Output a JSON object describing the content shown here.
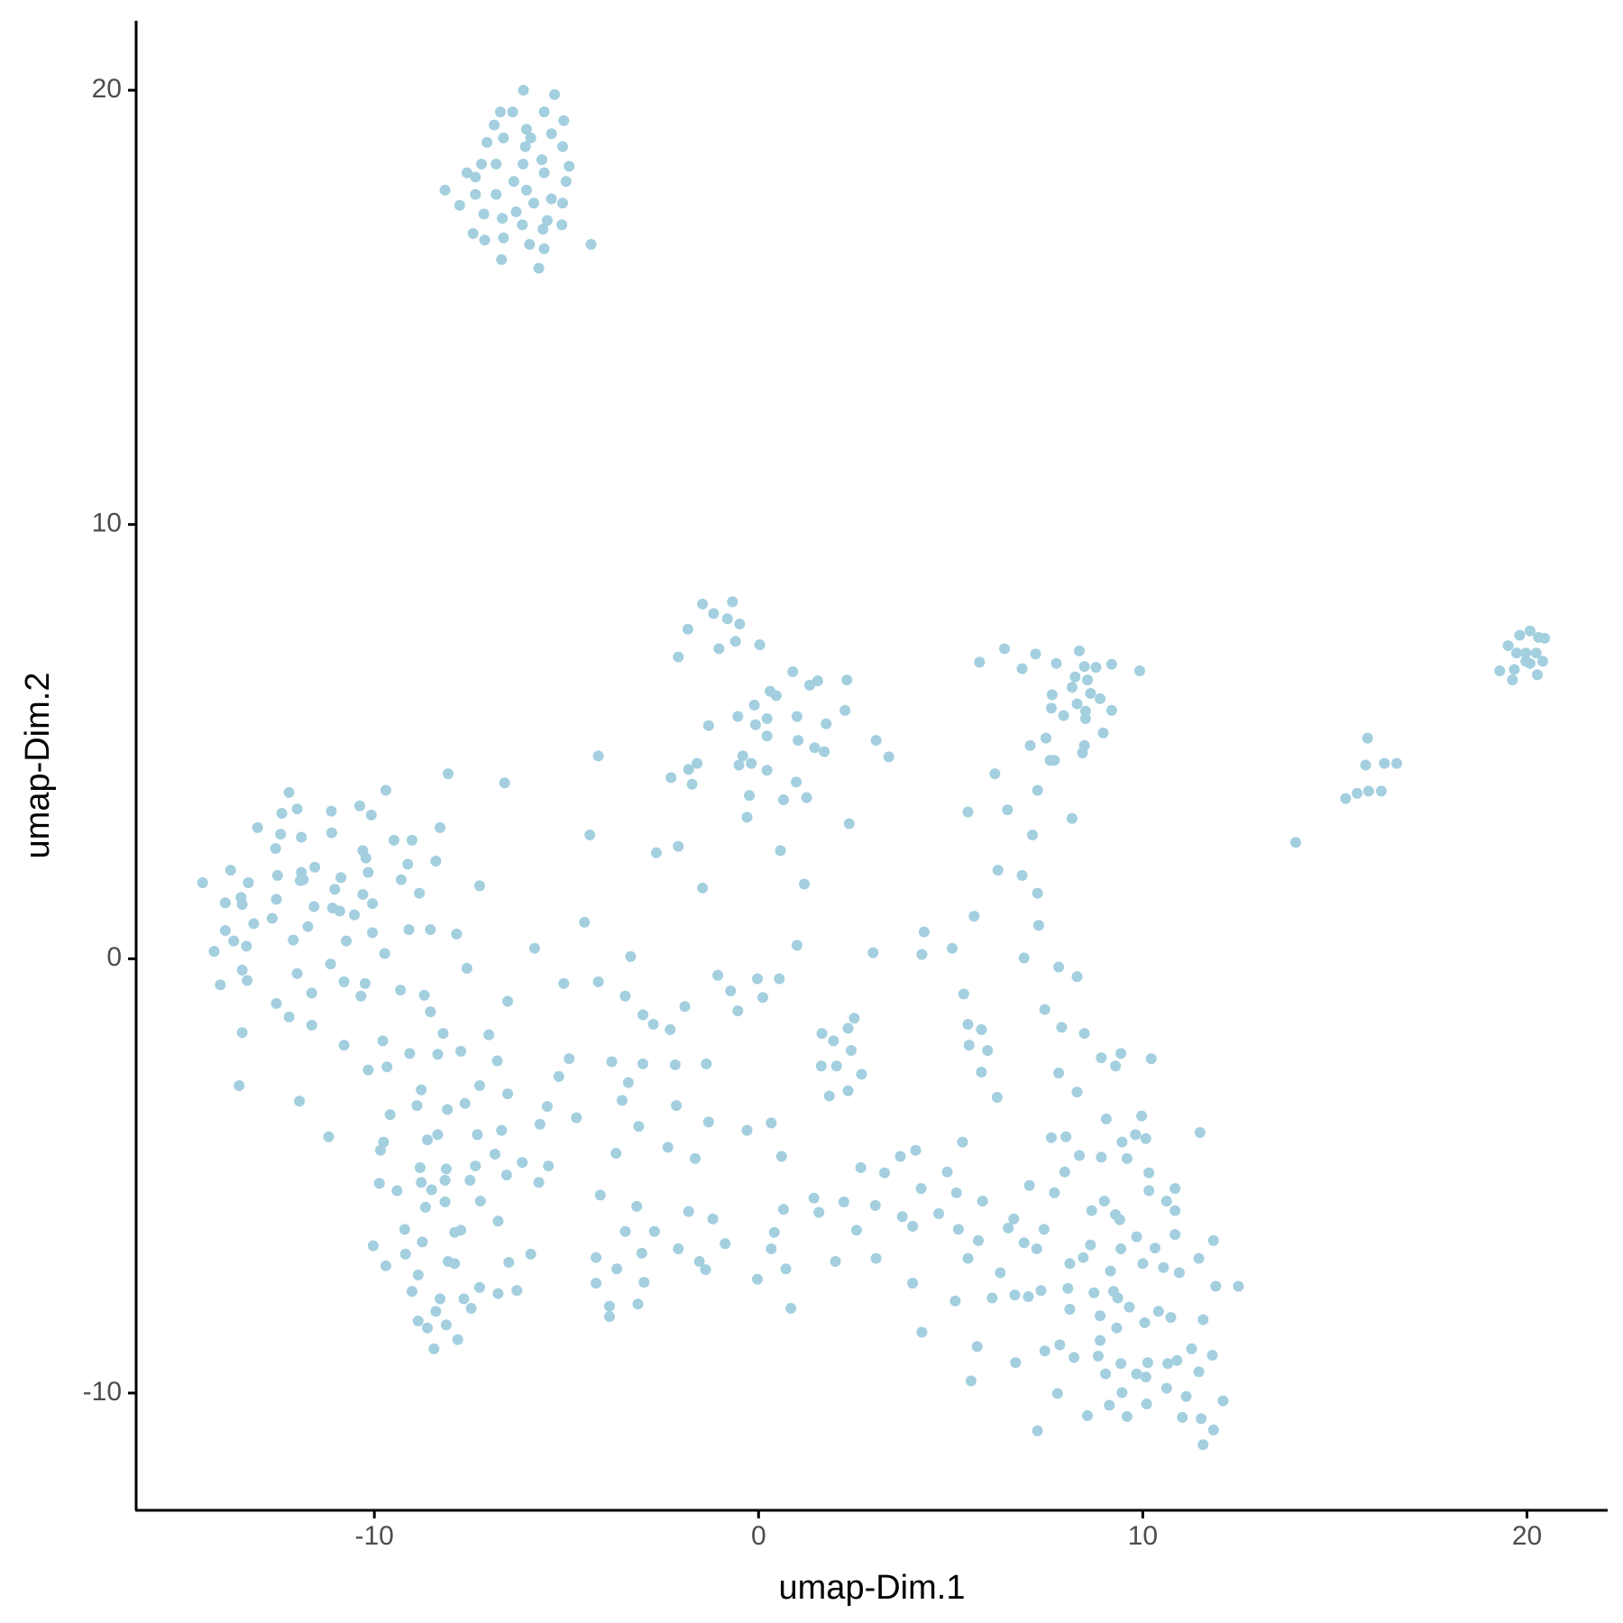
{
  "chart_data": {
    "type": "scatter",
    "x_label": "umap-Dim.1",
    "y_label": "umap-Dim.2",
    "color": "#a3cfdf",
    "xlim": [
      -16.2,
      22.1
    ],
    "ylim": [
      -12.7,
      21.6
    ],
    "xticks": [
      -10,
      0,
      10,
      20
    ],
    "yticks": [
      -10,
      0,
      10,
      20
    ],
    "grid": false,
    "x": [
      -6.12,
      -5.31,
      -6.72,
      -6.4,
      -5.58,
      -6.88,
      -6.04,
      -5.07,
      -5.93,
      -5.39,
      -7.07,
      -6.64,
      -6.07,
      -5.1,
      -7.21,
      -6.83,
      -6.13,
      -5.64,
      -4.93,
      -7.59,
      -7.37,
      -5.58,
      -5.01,
      -8.16,
      -7.37,
      -6.83,
      -6.37,
      -6.04,
      -7.78,
      -5.85,
      -5.39,
      -5.1,
      -7.15,
      -6.67,
      -6.31,
      -6.15,
      -5.5,
      -5.12,
      -5.61,
      -7.43,
      -7.13,
      -6.64,
      -5.96,
      -5.58,
      -4.36,
      -6.69,
      -5.72,
      19.51,
      19.81,
      20.08,
      20.3,
      20.46,
      19.73,
      19.97,
      20.24,
      20.41,
      20.08,
      19.67,
      19.29,
      19.62,
      20.27,
      19.97,
      15.85,
      15.8,
      16.29,
      16.61,
      15.28,
      15.58,
      15.88,
      16.21,
      13.98,
      6.4,
      5.75,
      7.21,
      6.86,
      8.35,
      7.75,
      8.48,
      8.78,
      9.19,
      9.92,
      8.24,
      8.56,
      8.16,
      7.64,
      8.64,
      8.89,
      7.62,
      7.94,
      8.29,
      8.51,
      9.19,
      8.51,
      8.97,
      7.48,
      7.07,
      8.48,
      8.43,
      7.59,
      7.7,
      6.15,
      7.26,
      5.45,
      6.48,
      8.16,
      7.13,
      6.23,
      6.86,
      7.26,
      5.61,
      7.29,
      6.91,
      7.81,
      8.29,
      5.04,
      4.25,
      4.31,
      2.98,
      -1.46,
      -0.68,
      -1.17,
      -0.81,
      -0.49,
      -1.84,
      -1.03,
      -0.6,
      0.03,
      -2.09,
      0.89,
      1.54,
      1.33,
      2.3,
      0.3,
      0.46,
      -0.11,
      2.25,
      -0.54,
      0.22,
      1.0,
      -1.3,
      -0.08,
      1.76,
      0.22,
      1.03,
      3.06,
      1.46,
      1.71,
      3.39,
      -0.41,
      -1.6,
      -0.51,
      -0.19,
      -1.82,
      0.22,
      -2.28,
      -1.73,
      0.98,
      -4.17,
      -6.61,
      -0.24,
      0.65,
      1.25,
      2.36,
      -0.3,
      -4.39,
      -2.09,
      0.57,
      -2.66,
      1.19,
      -1.46,
      -4.53,
      1.0,
      -3.33,
      -5.83,
      -12.22,
      -9.7,
      -10.38,
      -12.01,
      -11.12,
      -12.41,
      -10.08,
      -13.04,
      -8.08,
      -8.29,
      -12.44,
      -11.9,
      -11.11,
      -9.49,
      -9.02,
      -12.57,
      -10.3,
      -10.22,
      -8.4,
      -9.13,
      -13.74,
      -11.55,
      -11.9,
      -10.16,
      -12.52,
      -10.87,
      -9.3,
      -13.28,
      -14.47,
      -11.93,
      -11.85,
      -7.26,
      -11.03,
      -8.83,
      -10.3,
      -13.47,
      -12.55,
      -13.88,
      -13.44,
      -10.05,
      -11.09,
      -11.57,
      -10.9,
      -10.52,
      -12.66,
      -13.14,
      -11.73,
      -13.88,
      -10.05,
      -9.1,
      -8.54,
      -7.86,
      -13.66,
      -12.11,
      -10.73,
      -13.33,
      -14.17,
      -9.73,
      -11.14,
      -13.44,
      -12.01,
      -7.59,
      -13.31,
      -14.01,
      -10.79,
      -10.24,
      -9.32,
      -11.63,
      -8.7,
      -10.35,
      -6.53,
      -12.55,
      -12.22,
      -8.54,
      -11.63,
      -13.44,
      -8.21,
      -7.02,
      -10.79,
      -9.78,
      -9.08,
      -8.35,
      -7.75,
      -10.16,
      -9.67,
      -6.8,
      -13.52,
      -11.95,
      -8.78,
      -8.89,
      -8.1,
      -7.64,
      -7.26,
      -6.53,
      -9.59,
      -11.19,
      -9.76,
      -9.84,
      -8.35,
      -8.62,
      -7.32,
      -6.69,
      -8.81,
      -8.13,
      -7.37,
      -8.16,
      -6.86,
      -6.56,
      -6.15,
      -5.47,
      -5.72,
      -9.87,
      -9.41,
      -8.78,
      -7.51,
      -8.51,
      -8.16,
      -7.24,
      -8.67,
      -6.78,
      -7.75,
      -7.91,
      -9.21,
      -10.03,
      -8.75,
      -9.19,
      -9.7,
      -8.08,
      -7.91,
      -5.93,
      -8.86,
      -9.02,
      -7.26,
      -6.78,
      -6.29,
      -6.5,
      -8.29,
      -7.67,
      -8.4,
      -7.48,
      -8.86,
      -8.62,
      -8.13,
      -7.83,
      -8.45,
      -5.07,
      -4.17,
      -3.47,
      -3.01,
      -1.92,
      -2.3,
      -2.74,
      -4.93,
      -3.82,
      -3.01,
      -2.17,
      -1.36,
      -5.2,
      -3.39,
      -3.55,
      -5.5,
      -2.14,
      -4.74,
      -5.69,
      -3.12,
      -1.3,
      -3.71,
      -2.36,
      -1.65,
      -1.06,
      -0.73,
      -0.03,
      0.54,
      -0.54,
      0.11,
      -0.3,
      0.33,
      0.6,
      -4.12,
      -3.17,
      -3.47,
      -2.71,
      -1.82,
      -1.19,
      -2.09,
      -3.04,
      -4.23,
      -3.69,
      -2.98,
      -4.23,
      -3.88,
      -3.88,
      -3.14,
      -1.54,
      -1.38,
      -0.87,
      0.33,
      0.41,
      0.71,
      -0.03,
      0.84,
      0.65,
      1.44,
      1.57,
      2.22,
      2.55,
      2.0,
      1.65,
      1.95,
      2.33,
      2.49,
      1.63,
      2.03,
      2.41,
      2.68,
      1.84,
      2.33,
      2.66,
      3.04,
      3.06,
      3.28,
      3.69,
      4.09,
      3.74,
      4.01,
      4.01,
      4.25,
      4.23,
      4.91,
      5.15,
      5.31,
      4.69,
      5.2,
      5.72,
      5.83,
      5.45,
      5.12,
      5.34,
      5.45,
      5.8,
      5.48,
      5.96,
      5.8,
      6.21,
      7.45,
      7.89,
      8.48,
      8.29,
      7.81,
      8.92,
      9.29,
      9.43,
      10.22,
      7.62,
      8.0,
      8.35,
      8.92,
      9.05,
      9.46,
      9.59,
      9.81,
      9.97,
      10.08,
      10.16,
      10.16,
      11.49,
      10.84,
      10.62,
      10.84,
      9.29,
      9.0,
      8.67,
      9.4,
      7.7,
      7.97,
      7.05,
      6.64,
      6.5,
      6.91,
      7.24,
      7.43,
      8.64,
      8.45,
      8.1,
      9.16,
      9.43,
      9.84,
      10.0,
      10.32,
      10.54,
      10.95,
      10.84,
      11.46,
      11.84,
      6.29,
      6.08,
      6.67,
      7.02,
      7.35,
      8.05,
      8.1,
      8.73,
      9.24,
      9.35,
      9.65,
      10.41,
      10.73,
      10.05,
      9.32,
      8.89,
      11.9,
      12.49,
      11.57,
      7.84,
      7.45,
      8.21,
      8.89,
      8.84,
      9.43,
      9.03,
      9.84,
      10.13,
      10.08,
      10.65,
      10.89,
      11.27,
      11.81,
      11.46,
      6.69,
      5.69,
      5.53,
      7.78,
      9.46,
      9.13,
      9.59,
      10.1,
      10.62,
      11.13,
      11.03,
      11.52,
      12.09,
      11.84,
      11.57,
      8.56,
      7.26
    ],
    "y": [
      20.0,
      19.9,
      19.5,
      19.5,
      19.5,
      19.2,
      19.1,
      19.3,
      18.9,
      19.0,
      18.8,
      18.9,
      18.7,
      18.7,
      18.3,
      18.3,
      18.3,
      18.4,
      18.25,
      18.1,
      18.0,
      18.1,
      17.9,
      17.7,
      17.6,
      17.6,
      17.9,
      17.7,
      17.35,
      17.4,
      17.5,
      17.4,
      17.15,
      17.05,
      17.2,
      16.9,
      17.0,
      16.9,
      16.8,
      16.7,
      16.55,
      16.6,
      16.45,
      16.35,
      16.45,
      16.1,
      15.9,
      7.21,
      7.45,
      7.55,
      7.4,
      7.38,
      7.04,
      7.04,
      7.04,
      6.85,
      6.8,
      6.66,
      6.63,
      6.42,
      6.54,
      6.85,
      5.08,
      4.46,
      4.5,
      4.5,
      3.69,
      3.81,
      3.86,
      3.86,
      2.68,
      7.14,
      6.83,
      7.02,
      6.68,
      7.09,
      6.8,
      6.73,
      6.71,
      6.78,
      6.63,
      6.49,
      6.42,
      6.25,
      6.08,
      6.11,
      5.99,
      5.77,
      5.6,
      5.87,
      5.7,
      5.72,
      5.53,
      5.2,
      5.08,
      4.91,
      4.91,
      4.74,
      4.57,
      4.57,
      4.26,
      3.88,
      3.38,
      3.43,
      3.23,
      2.85,
      2.04,
      1.92,
      1.51,
      0.98,
      0.77,
      0.02,
      -0.19,
      -0.41,
      0.24,
      0.1,
      0.62,
      0.14,
      8.17,
      8.22,
      7.95,
      7.83,
      7.71,
      7.59,
      7.14,
      7.31,
      7.23,
      6.95,
      6.61,
      6.4,
      6.3,
      6.42,
      6.16,
      6.06,
      5.84,
      5.72,
      5.58,
      5.53,
      5.58,
      5.37,
      5.39,
      5.41,
      5.13,
      5.03,
      5.03,
      4.86,
      4.77,
      4.65,
      4.67,
      4.5,
      4.46,
      4.5,
      4.36,
      4.34,
      4.17,
      4.02,
      4.07,
      4.67,
      4.05,
      3.76,
      3.66,
      3.71,
      3.11,
      3.26,
      2.85,
      2.59,
      2.49,
      2.44,
      1.72,
      1.63,
      0.84,
      0.31,
      0.05,
      0.24,
      3.83,
      3.88,
      3.52,
      3.45,
      3.4,
      3.35,
      3.31,
      3.02,
      4.26,
      3.02,
      2.87,
      2.8,
      2.9,
      2.73,
      2.73,
      2.54,
      2.49,
      2.32,
      2.25,
      2.18,
      2.04,
      2.11,
      1.99,
      1.99,
      1.92,
      1.87,
      1.82,
      1.75,
      1.75,
      1.8,
      1.82,
      1.68,
      1.6,
      1.51,
      1.48,
      1.41,
      1.37,
      1.29,
      1.25,
      1.27,
      1.17,
      1.2,
      1.1,
      1.01,
      0.93,
      0.81,
      0.74,
      0.65,
      0.6,
      0.67,
      0.67,
      0.57,
      0.41,
      0.43,
      0.41,
      0.29,
      0.17,
      0.12,
      -0.12,
      -0.26,
      -0.34,
      -0.22,
      -0.5,
      -0.6,
      -0.53,
      -0.57,
      -0.72,
      -0.79,
      -0.84,
      -0.86,
      -0.98,
      -1.03,
      -1.34,
      -1.22,
      -1.53,
      -1.7,
      -1.72,
      -1.75,
      -1.99,
      -1.89,
      -2.18,
      -2.2,
      -2.13,
      -2.56,
      -2.49,
      -2.35,
      -2.92,
      -3.28,
      -3.02,
      -3.38,
      -3.47,
      -3.33,
      -2.92,
      -3.11,
      -3.59,
      -4.1,
      -4.22,
      -4.41,
      -4.05,
      -4.17,
      -4.05,
      -3.95,
      -4.81,
      -4.84,
      -4.77,
      -5.1,
      -4.5,
      -4.98,
      -4.69,
      -4.77,
      -5.15,
      -5.17,
      -5.34,
      -5.15,
      -5.1,
      -5.32,
      -5.6,
      -5.58,
      -5.72,
      -6.04,
      -6.25,
      -6.3,
      -6.23,
      -6.61,
      -6.52,
      -6.8,
      -7.07,
      -6.97,
      -7.02,
      -6.8,
      -7.28,
      -7.66,
      -7.57,
      -7.71,
      -7.64,
      -6.99,
      -7.83,
      -7.83,
      -8.12,
      -8.05,
      -8.34,
      -8.5,
      -8.43,
      -8.77,
      -8.98,
      -0.57,
      -0.53,
      -0.86,
      -1.29,
      -1.1,
      -1.63,
      -1.51,
      -2.3,
      -2.37,
      -2.42,
      -2.44,
      -2.42,
      -2.71,
      -2.85,
      -3.26,
      -3.4,
      -3.38,
      -3.66,
      -3.81,
      -3.86,
      -3.76,
      -4.48,
      -4.34,
      -4.6,
      -0.38,
      -0.74,
      -0.46,
      -0.46,
      -1.2,
      -0.89,
      -3.95,
      -3.78,
      -4.55,
      -5.44,
      -5.7,
      -6.28,
      -6.28,
      -5.82,
      -5.99,
      -6.68,
      -6.78,
      -6.88,
      -7.14,
      -7.45,
      -7.47,
      -8.0,
      -8.24,
      -7.95,
      -6.97,
      -7.16,
      -6.56,
      -6.68,
      -6.3,
      -7.14,
      -7.38,
      -8.05,
      -5.77,
      -5.51,
      -5.84,
      -5.6,
      -6.25,
      -6.97,
      -1.72,
      -1.89,
      -1.6,
      -1.37,
      -2.47,
      -2.47,
      -2.11,
      -2.66,
      -3.16,
      -3.04,
      -4.81,
      -5.68,
      -6.9,
      -4.93,
      -4.55,
      -4.41,
      -5.94,
      -6.16,
      -7.47,
      -8.6,
      -5.29,
      -4.91,
      -5.39,
      -4.22,
      -5.87,
      -6.23,
      -6.49,
      -5.58,
      -6.9,
      -7.88,
      -0.81,
      -1.51,
      -1.63,
      -1.99,
      -2.11,
      -2.61,
      -3.19,
      -1.17,
      -1.58,
      -1.72,
      -3.07,
      -2.63,
      -2.28,
      -2.47,
      -2.18,
      -2.3,
      -4.12,
      -4.1,
      -4.53,
      -4.57,
      -3.69,
      -4.22,
      -4.6,
      -4.05,
      -3.62,
      -4.14,
      -4.93,
      -5.34,
      -4.0,
      -5.29,
      -5.58,
      -5.8,
      -5.89,
      -5.58,
      -5.8,
      -6.01,
      -5.39,
      -4.91,
      -5.22,
      -5.99,
      -6.2,
      -6.54,
      -6.68,
      -6.23,
      -6.59,
      -6.88,
      -7.02,
      -7.19,
      -6.68,
      -6.4,
      -7.02,
      -6.66,
      -7.11,
      -7.23,
      -6.35,
      -6.9,
      -6.49,
      -7.23,
      -7.81,
      -7.74,
      -7.78,
      -7.64,
      -7.59,
      -8.07,
      -7.69,
      -7.66,
      -7.81,
      -8.02,
      -8.12,
      -8.26,
      -8.38,
      -8.5,
      -8.22,
      -7.54,
      -7.54,
      -8.31,
      -8.89,
      -9.03,
      -9.18,
      -8.79,
      -9.15,
      -9.32,
      -9.56,
      -9.56,
      -9.3,
      -9.63,
      -9.32,
      -9.25,
      -8.98,
      -9.13,
      -9.51,
      -9.3,
      -8.93,
      -9.72,
      -10.01,
      -9.99,
      -10.28,
      -10.54,
      -10.25,
      -9.89,
      -10.08,
      -10.56,
      -10.59,
      -10.18,
      -10.85,
      -11.19,
      -10.52,
      -10.87
    ]
  }
}
